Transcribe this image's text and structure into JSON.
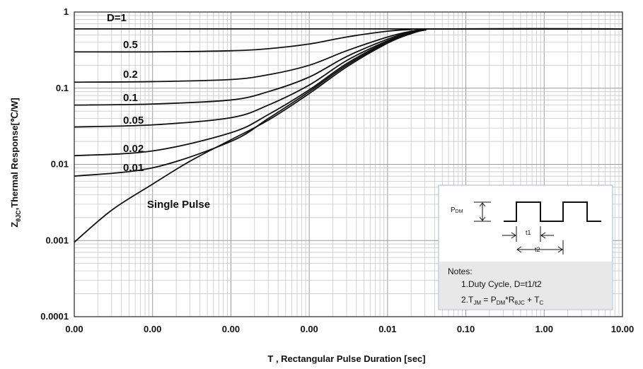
{
  "chart_data": {
    "type": "line",
    "scale": {
      "x": "log",
      "y": "log"
    },
    "grid": true,
    "xlabel": "T , Rectangular Pulse Duration [sec]",
    "ylabel_main": "Z",
    "ylabel_sub": "θJC",
    "ylabel_rest": ",Thermal Response[℃/W]",
    "xlim": [
      1e-06,
      10
    ],
    "ylim": [
      0.0001,
      1
    ],
    "x_ticks": [
      {
        "value": 1e-06,
        "label": "0.00"
      },
      {
        "value": 1e-05,
        "label": "0.00"
      },
      {
        "value": 0.0001,
        "label": "0.00"
      },
      {
        "value": 0.001,
        "label": "0.00"
      },
      {
        "value": 0.01,
        "label": "0.01"
      },
      {
        "value": 0.1,
        "label": "0.10"
      },
      {
        "value": 1,
        "label": "1.00"
      },
      {
        "value": 10,
        "label": "10.00"
      }
    ],
    "y_ticks": [
      {
        "value": 1,
        "label": "1"
      },
      {
        "value": 0.1,
        "label": "0.1"
      },
      {
        "value": 0.01,
        "label": "0.01"
      },
      {
        "value": 0.001,
        "label": "0.001"
      },
      {
        "value": 0.0001,
        "label": "0.0001"
      }
    ],
    "series": [
      {
        "name": "D=1",
        "label_at": [
          2.6e-06,
          0.76
        ],
        "points": [
          [
            1e-06,
            0.6
          ],
          [
            10,
            0.6
          ]
        ]
      },
      {
        "name": "0.5",
        "label_at": [
          4.2e-06,
          0.335
        ],
        "points": [
          [
            1e-06,
            0.3
          ],
          [
            1e-05,
            0.3
          ],
          [
            0.0001,
            0.31
          ],
          [
            0.0003,
            0.33
          ],
          [
            0.001,
            0.38
          ],
          [
            0.003,
            0.47
          ],
          [
            0.01,
            0.56
          ],
          [
            0.02,
            0.59
          ],
          [
            0.03,
            0.6
          ],
          [
            10,
            0.6
          ]
        ]
      },
      {
        "name": "0.2",
        "label_at": [
          4.2e-06,
          0.137
        ],
        "points": [
          [
            1e-06,
            0.12
          ],
          [
            1e-05,
            0.122
          ],
          [
            0.0001,
            0.13
          ],
          [
            0.0003,
            0.15
          ],
          [
            0.001,
            0.2
          ],
          [
            0.003,
            0.31
          ],
          [
            0.01,
            0.47
          ],
          [
            0.02,
            0.56
          ],
          [
            0.03,
            0.59
          ],
          [
            0.05,
            0.6
          ],
          [
            10,
            0.6
          ]
        ]
      },
      {
        "name": "0.1",
        "label_at": [
          4.2e-06,
          0.068
        ],
        "points": [
          [
            1e-06,
            0.06
          ],
          [
            1e-05,
            0.062
          ],
          [
            0.0001,
            0.07
          ],
          [
            0.0003,
            0.09
          ],
          [
            0.001,
            0.14
          ],
          [
            0.003,
            0.26
          ],
          [
            0.01,
            0.44
          ],
          [
            0.02,
            0.55
          ],
          [
            0.03,
            0.58
          ],
          [
            0.05,
            0.6
          ],
          [
            10,
            0.6
          ]
        ]
      },
      {
        "name": "0.05",
        "label_at": [
          4.2e-06,
          0.034
        ],
        "points": [
          [
            1e-06,
            0.031
          ],
          [
            1e-05,
            0.033
          ],
          [
            0.0001,
            0.041
          ],
          [
            0.0003,
            0.06
          ],
          [
            0.001,
            0.11
          ],
          [
            0.003,
            0.23
          ],
          [
            0.01,
            0.42
          ],
          [
            0.02,
            0.54
          ],
          [
            0.03,
            0.58
          ],
          [
            0.05,
            0.6
          ],
          [
            10,
            0.6
          ]
        ]
      },
      {
        "name": "0.02",
        "label_at": [
          4.2e-06,
          0.0145
        ],
        "points": [
          [
            1e-06,
            0.013
          ],
          [
            1e-05,
            0.015
          ],
          [
            0.0001,
            0.026
          ],
          [
            0.0003,
            0.045
          ],
          [
            0.001,
            0.095
          ],
          [
            0.003,
            0.21
          ],
          [
            0.01,
            0.41
          ],
          [
            0.02,
            0.53
          ],
          [
            0.03,
            0.58
          ],
          [
            0.05,
            0.6
          ],
          [
            10,
            0.6
          ]
        ]
      },
      {
        "name": "0.01",
        "label_at": [
          4.2e-06,
          0.0082
        ],
        "points": [
          [
            1e-06,
            0.007
          ],
          [
            1e-05,
            0.009
          ],
          [
            0.0001,
            0.02
          ],
          [
            0.0003,
            0.04
          ],
          [
            0.001,
            0.09
          ],
          [
            0.003,
            0.2
          ],
          [
            0.01,
            0.4
          ],
          [
            0.02,
            0.53
          ],
          [
            0.03,
            0.58
          ],
          [
            0.05,
            0.6
          ],
          [
            10,
            0.6
          ]
        ]
      },
      {
        "name": "Single Pulse",
        "label_at": [
          8.5e-06,
          0.0027
        ],
        "points": [
          [
            1e-06,
            0.00095
          ],
          [
            3e-06,
            0.0025
          ],
          [
            1e-05,
            0.0055
          ],
          [
            3e-05,
            0.011
          ],
          [
            0.0001,
            0.021
          ],
          [
            0.0003,
            0.038
          ],
          [
            0.001,
            0.085
          ],
          [
            0.003,
            0.19
          ],
          [
            0.01,
            0.39
          ],
          [
            0.02,
            0.52
          ],
          [
            0.03,
            0.58
          ],
          [
            0.05,
            0.6
          ],
          [
            10,
            0.6
          ]
        ]
      }
    ]
  },
  "inset": {
    "pdm_main": "P",
    "pdm_sub": "DM",
    "t1": "t1",
    "t2": "t2",
    "notes_title": "Notes:",
    "note1": "1.Duty  Cycle, D=t1/t2",
    "note2_parts": [
      "2.T",
      "JM",
      " = P",
      "DM",
      "*R",
      "θJC",
      " + T",
      "C"
    ]
  }
}
